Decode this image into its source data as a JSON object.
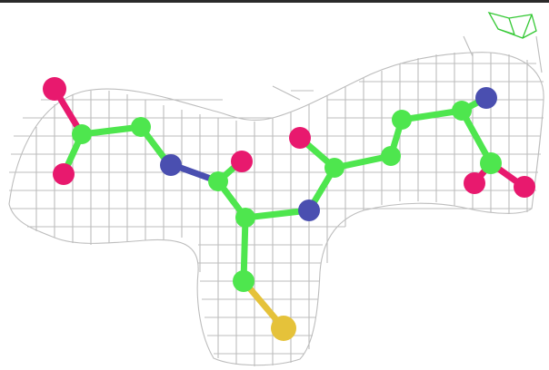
{
  "scene": {
    "background": "#ffffff",
    "colors": {
      "mesh": "#bdbdbd",
      "carbon": "#4ee64e",
      "nitrogen": "#4a4fb0",
      "oxygen": "#e8196e",
      "sulfur": "#e5c23a",
      "green_cage": "#35c935"
    },
    "elements": [
      "carbon",
      "nitrogen",
      "oxygen",
      "sulfur"
    ]
  }
}
